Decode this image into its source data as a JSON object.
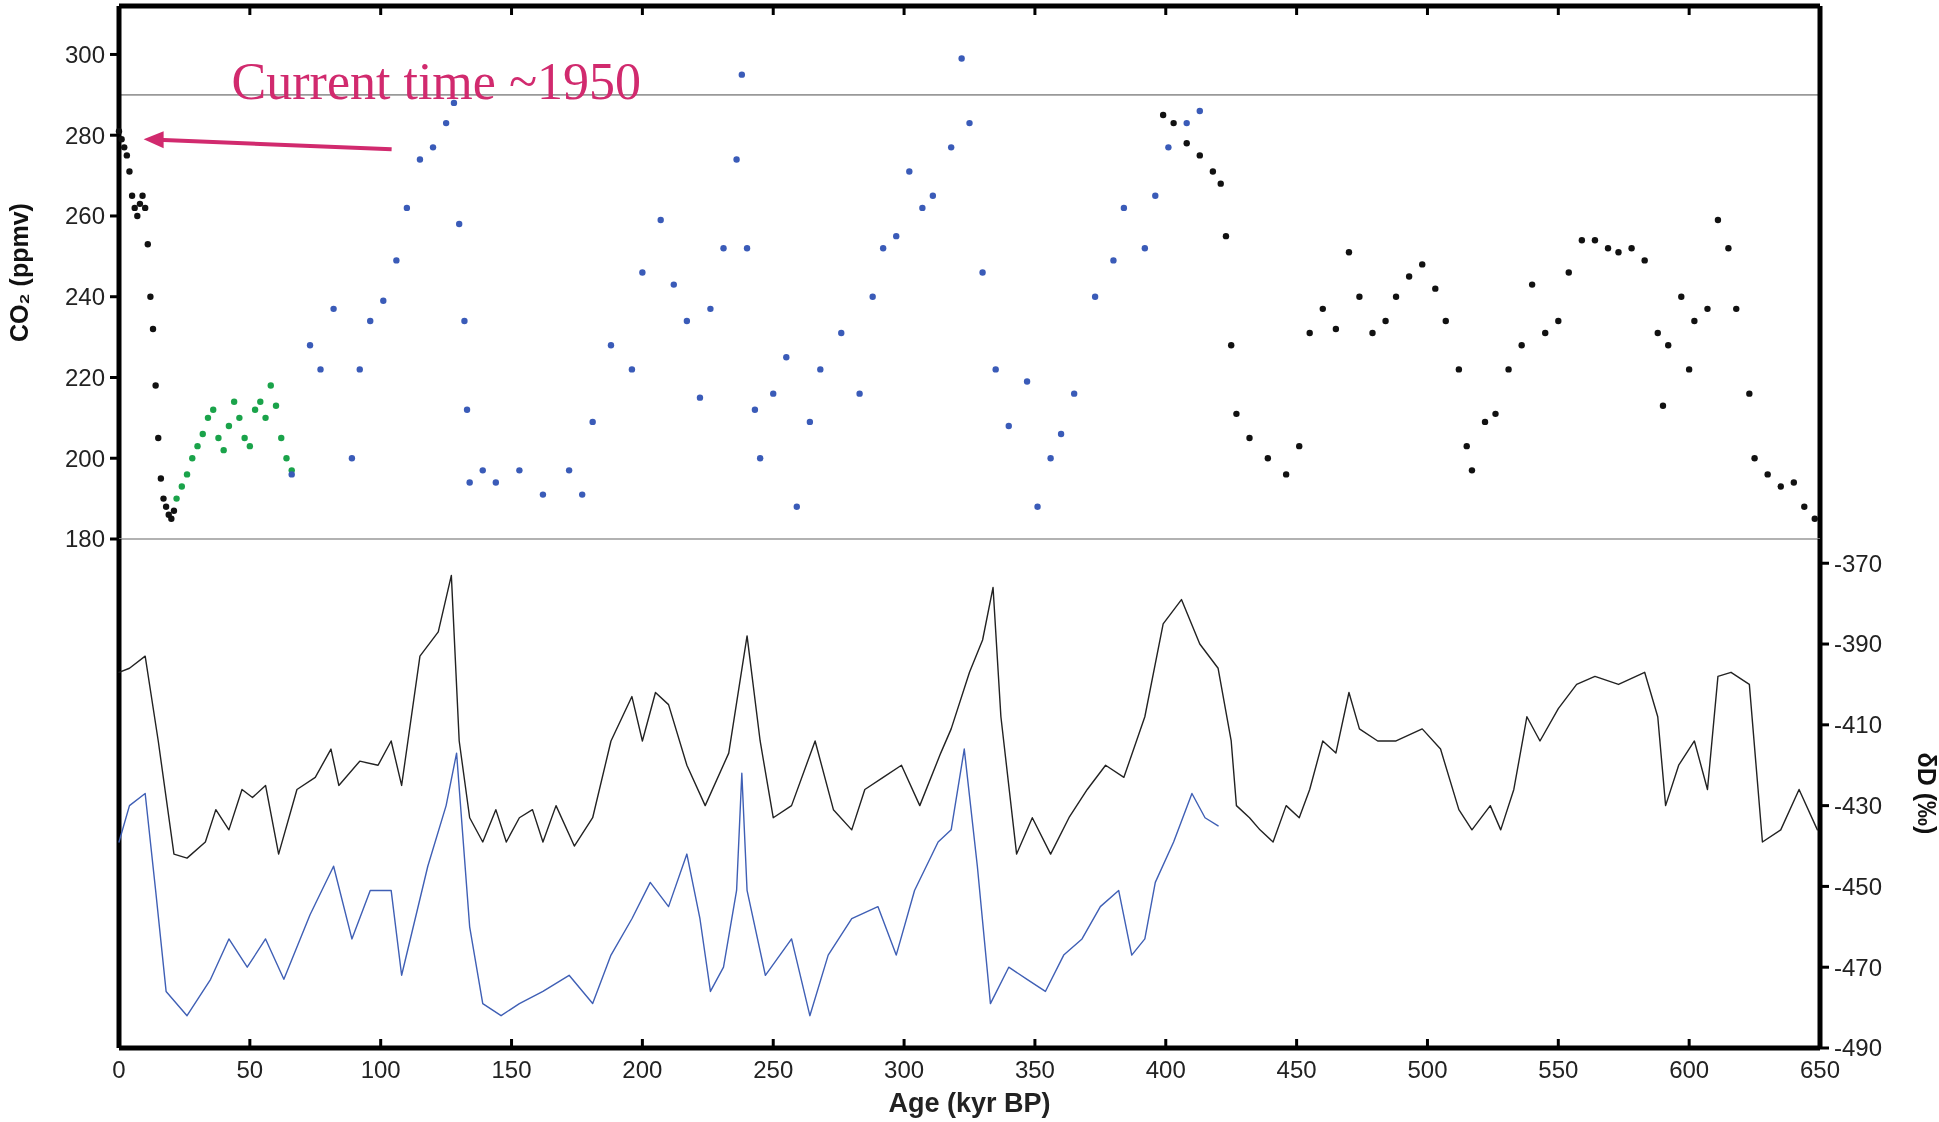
{
  "chart_data": [
    {
      "type": "scatter",
      "ylabel": "CO₂ (ppmv)",
      "xlim": [
        0,
        650
      ],
      "xticks": [
        0,
        50,
        100,
        150,
        200,
        250,
        300,
        350,
        400,
        450,
        500,
        550,
        600,
        650
      ],
      "ylim": [
        180,
        312
      ],
      "yticks": [
        180,
        200,
        220,
        240,
        260,
        280,
        300
      ],
      "tick_labels": "y",
      "grid": false,
      "marker": "circle",
      "ref_lines": [
        {
          "axis": "y",
          "value": 290,
          "color": "#999999"
        }
      ],
      "annotations": [
        {
          "text": "Current time ~1950",
          "x": 1,
          "y": 279
        }
      ],
      "series": [
        {
          "color": "#111111",
          "x": [
            0,
            1,
            2,
            3,
            4,
            5,
            6,
            7,
            8,
            9,
            10,
            11,
            12,
            13,
            14,
            15,
            16,
            17,
            18,
            19,
            20,
            21
          ],
          "values": [
            281,
            279,
            277,
            275,
            271,
            265,
            262,
            260,
            263,
            265,
            262,
            253,
            240,
            232,
            218,
            205,
            195,
            190,
            188,
            186,
            185,
            187
          ]
        },
        {
          "color": "#1aa34a",
          "x": [
            22,
            24,
            26,
            28,
            30,
            32,
            34,
            36,
            38,
            40,
            42,
            44,
            46,
            48,
            50,
            52,
            54,
            56,
            58,
            60,
            62,
            64,
            66
          ],
          "values": [
            190,
            193,
            196,
            200,
            203,
            206,
            210,
            212,
            205,
            202,
            208,
            214,
            210,
            205,
            203,
            212,
            214,
            210,
            218,
            213,
            205,
            200,
            197
          ]
        },
        {
          "color": "#3a5bb8",
          "x": [
            66,
            73,
            77,
            82,
            89,
            92,
            96,
            101,
            106,
            110,
            115,
            120,
            125,
            128,
            130,
            132,
            133,
            134,
            139,
            144,
            153,
            162,
            172,
            177,
            181,
            188,
            196,
            200,
            207,
            212,
            217,
            222,
            226,
            231,
            236,
            238,
            240,
            243,
            245,
            250,
            255,
            259,
            264,
            268,
            276,
            283,
            288,
            292,
            297,
            302,
            307,
            311,
            318,
            322,
            325,
            330,
            335,
            340,
            347,
            351,
            356,
            360,
            365,
            373,
            380,
            384,
            392,
            396,
            401,
            408,
            413
          ],
          "values": [
            196,
            228,
            222,
            237,
            200,
            222,
            234,
            239,
            249,
            262,
            274,
            277,
            283,
            288,
            258,
            234,
            212,
            194,
            197,
            194,
            197,
            191,
            197,
            191,
            209,
            228,
            222,
            246,
            259,
            243,
            234,
            215,
            237,
            252,
            274,
            295,
            252,
            212,
            200,
            216,
            225,
            188,
            209,
            222,
            231,
            216,
            240,
            252,
            255,
            271,
            262,
            265,
            277,
            299,
            283,
            246,
            222,
            208,
            219,
            188,
            200,
            206,
            216,
            240,
            249,
            262,
            252,
            265,
            277,
            283,
            286
          ]
        },
        {
          "color": "#111111",
          "x": [
            399,
            403,
            408,
            413,
            418,
            421,
            423,
            425,
            427,
            432,
            439,
            446,
            451,
            455,
            460,
            465,
            470,
            474,
            479,
            484,
            488,
            493,
            498,
            503,
            507,
            512,
            515,
            517,
            522,
            526,
            531,
            536,
            540,
            545,
            550,
            554,
            559,
            564,
            569,
            573,
            578,
            583,
            588,
            590,
            592,
            597,
            600,
            602,
            607,
            611,
            615,
            618,
            623,
            625,
            630,
            635,
            640,
            644,
            648
          ],
          "values": [
            285,
            283,
            278,
            275,
            271,
            268,
            255,
            228,
            211,
            205,
            200,
            196,
            203,
            231,
            237,
            232,
            251,
            240,
            231,
            234,
            240,
            245,
            248,
            242,
            234,
            222,
            203,
            197,
            209,
            211,
            222,
            228,
            243,
            231,
            234,
            246,
            254,
            254,
            252,
            251,
            252,
            249,
            231,
            213,
            228,
            240,
            222,
            234,
            237,
            259,
            252,
            237,
            216,
            200,
            196,
            193,
            194,
            188,
            185
          ]
        }
      ]
    },
    {
      "type": "line",
      "xlabel": "Age (kyr BP)",
      "ylabel": "δD (‰)",
      "xlim": [
        0,
        650
      ],
      "xticks": [
        0,
        50,
        100,
        150,
        200,
        250,
        300,
        350,
        400,
        450,
        500,
        550,
        600,
        650
      ],
      "ylim": [
        -490,
        -364
      ],
      "yticks": [
        -370,
        -390,
        -410,
        -430,
        -450,
        -470,
        -490
      ],
      "grid": false,
      "marker": "none",
      "line_style": "solid",
      "series": [
        {
          "color": "#222222",
          "x": [
            0,
            4,
            10,
            15,
            21,
            26,
            33,
            37,
            42,
            47,
            51,
            56,
            61,
            68,
            75,
            81,
            84,
            92,
            99,
            104,
            108,
            115,
            122,
            127,
            130,
            134,
            139,
            144,
            148,
            153,
            158,
            162,
            167,
            174,
            181,
            188,
            196,
            200,
            205,
            210,
            217,
            224,
            233,
            240,
            245,
            250,
            257,
            266,
            273,
            280,
            285,
            292,
            299,
            306,
            314,
            318,
            325,
            330,
            334,
            337,
            343,
            349,
            356,
            363,
            370,
            377,
            384,
            392,
            399,
            406,
            413,
            420,
            425,
            427,
            432,
            436,
            441,
            446,
            451,
            455,
            460,
            465,
            470,
            474,
            481,
            488,
            498,
            505,
            512,
            517,
            524,
            528,
            533,
            538,
            543,
            550,
            557,
            564,
            573,
            583,
            588,
            591,
            596,
            602,
            607,
            611,
            616,
            623,
            628,
            635,
            642,
            649
          ],
          "values": [
            -397,
            -396,
            -393,
            -414,
            -442,
            -443,
            -439,
            -431,
            -436,
            -426,
            -428,
            -425,
            -442,
            -426,
            -423,
            -416,
            -425,
            -419,
            -420,
            -414,
            -425,
            -393,
            -387,
            -373,
            -414,
            -433,
            -439,
            -431,
            -439,
            -433,
            -431,
            -439,
            -430,
            -440,
            -433,
            -414,
            -403,
            -414,
            -402,
            -405,
            -420,
            -430,
            -417,
            -388,
            -414,
            -433,
            -430,
            -414,
            -431,
            -436,
            -426,
            -423,
            -420,
            -430,
            -417,
            -411,
            -397,
            -389,
            -376,
            -408,
            -442,
            -433,
            -442,
            -433,
            -426,
            -420,
            -423,
            -408,
            -385,
            -379,
            -390,
            -396,
            -414,
            -430,
            -433,
            -436,
            -439,
            -430,
            -433,
            -426,
            -414,
            -417,
            -402,
            -411,
            -414,
            -414,
            -411,
            -416,
            -431,
            -436,
            -430,
            -436,
            -426,
            -408,
            -414,
            -406,
            -400,
            -398,
            -400,
            -397,
            -408,
            -430,
            -420,
            -414,
            -426,
            -398,
            -397,
            -400,
            -439,
            -436,
            -426,
            -436
          ]
        },
        {
          "color": "#3f5fb5",
          "x": [
            0,
            4,
            10,
            14,
            18,
            26,
            35,
            42,
            49,
            56,
            63,
            73,
            82,
            89,
            96,
            104,
            108,
            118,
            125,
            129,
            134,
            139,
            146,
            153,
            162,
            172,
            181,
            188,
            196,
            203,
            210,
            217,
            222,
            226,
            231,
            236,
            238,
            240,
            247,
            257,
            264,
            271,
            280,
            290,
            297,
            304,
            313,
            318,
            323,
            328,
            333,
            340,
            347,
            354,
            361,
            368,
            375,
            382,
            387,
            392,
            396,
            403,
            410,
            415,
            420
          ],
          "values": [
            -439,
            -430,
            -427,
            -451,
            -476,
            -482,
            -473,
            -463,
            -470,
            -463,
            -473,
            -457,
            -445,
            -463,
            -451,
            -451,
            -472,
            -445,
            -430,
            -417,
            -460,
            -479,
            -482,
            -479,
            -476,
            -472,
            -479,
            -467,
            -458,
            -449,
            -455,
            -442,
            -458,
            -476,
            -470,
            -451,
            -422,
            -451,
            -472,
            -463,
            -482,
            -467,
            -458,
            -455,
            -467,
            -451,
            -439,
            -436,
            -416,
            -445,
            -479,
            -470,
            -473,
            -476,
            -467,
            -463,
            -455,
            -451,
            -467,
            -463,
            -449,
            -439,
            -427,
            -433,
            -435
          ]
        }
      ]
    }
  ]
}
